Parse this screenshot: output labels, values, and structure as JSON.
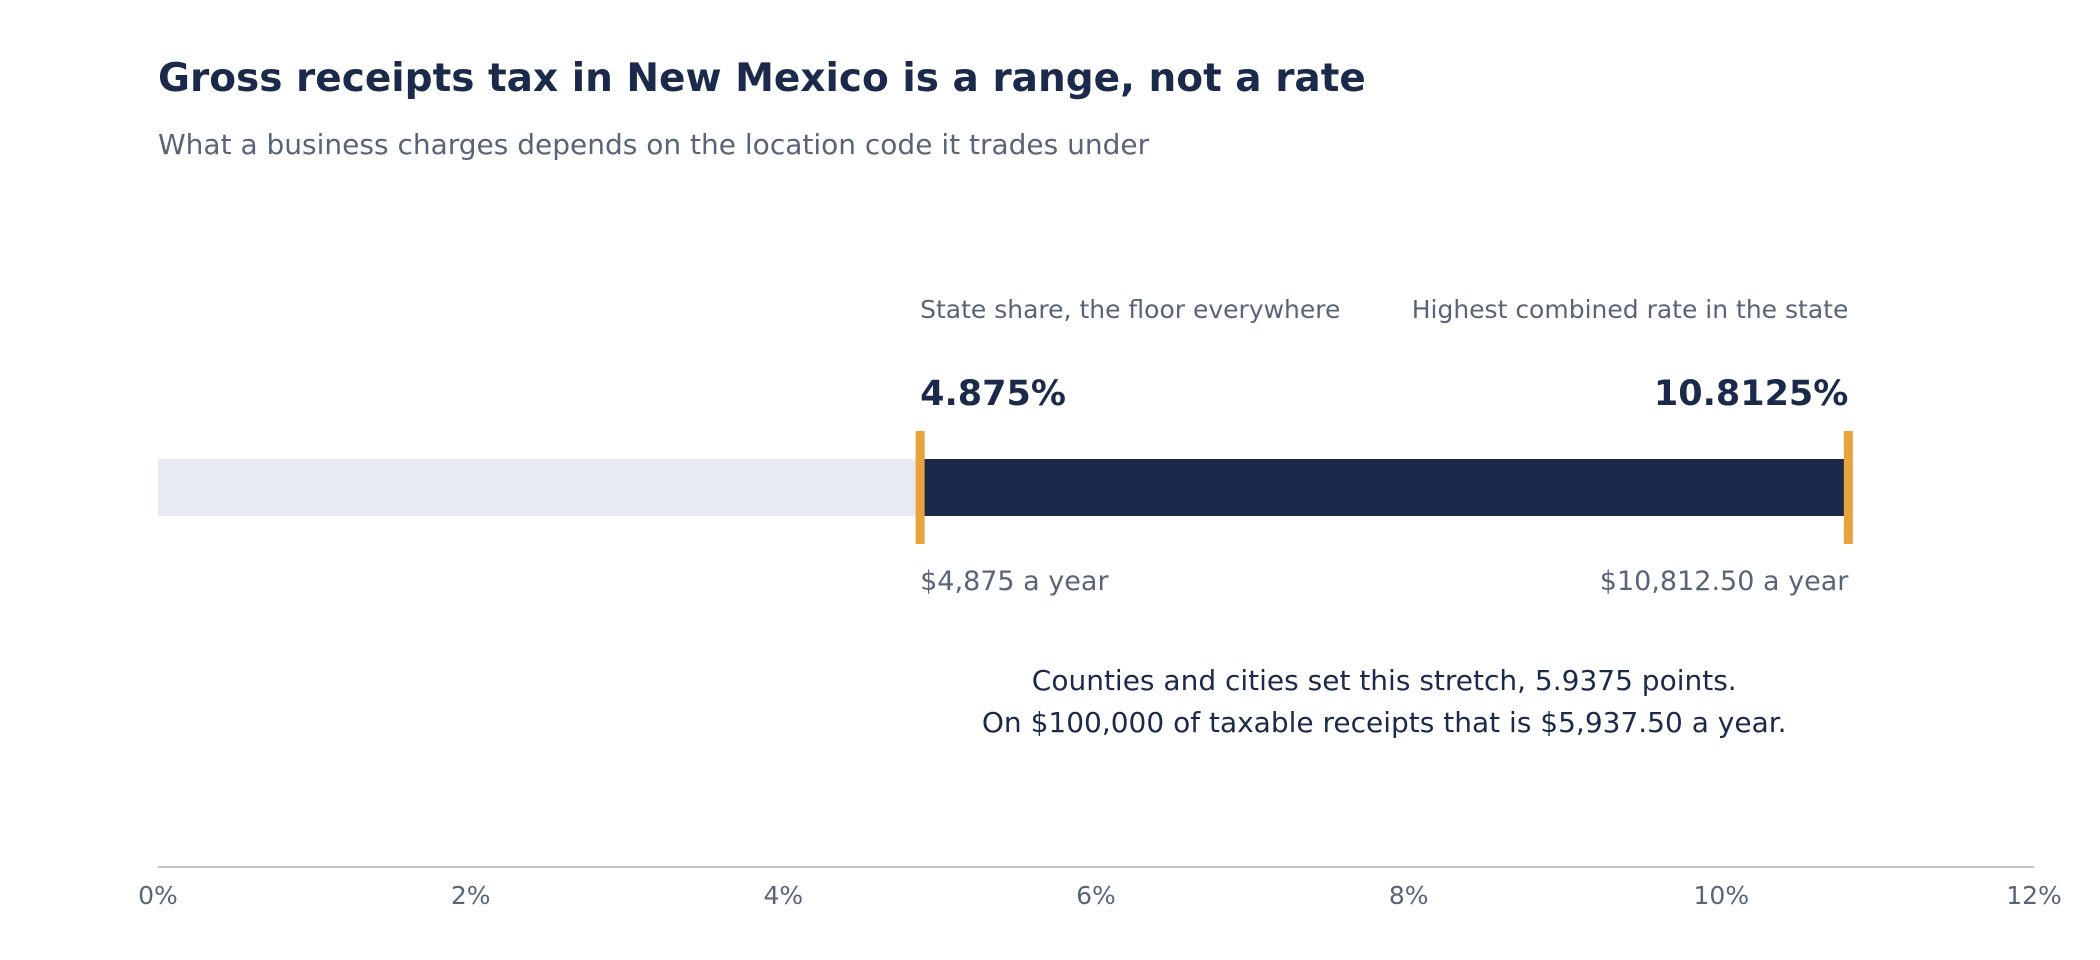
{
  "chart_data": {
    "type": "bar",
    "title": "Gross receipts tax in New Mexico is a range, not a rate",
    "subtitle": "What a business charges depends on the location code it trades under",
    "xlim": [
      0,
      12
    ],
    "x_ticks": [
      0,
      2,
      4,
      6,
      8,
      10,
      12
    ],
    "x_tick_labels": [
      "0%",
      "2%",
      "4%",
      "6%",
      "8%",
      "10%",
      "12%"
    ],
    "range": {
      "low": 4.875,
      "high": 10.8125
    },
    "markers": [
      {
        "value": 4.875,
        "label": "State share, the floor everywhere",
        "value_label": "4.875%",
        "amount_label": "$4,875 a year",
        "align": "start"
      },
      {
        "value": 10.8125,
        "label": "Highest combined rate in the state",
        "value_label": "10.8125%",
        "amount_label": "$10,812.50 a year",
        "align": "end"
      }
    ],
    "annotation": [
      "Counties and cities set this stretch, 5.9375 points.",
      "On $100,000 of taxable receipts that is $5,937.50 a year."
    ],
    "grid": false,
    "legend": "none"
  },
  "colors": {
    "range_bar": "#1b2a4a",
    "track": "#e6ebf2",
    "marker": "#e8a33d",
    "text_dark": "#1b2a4a",
    "text_muted": "#5a6478",
    "axis_line": "#c4c4c4"
  }
}
